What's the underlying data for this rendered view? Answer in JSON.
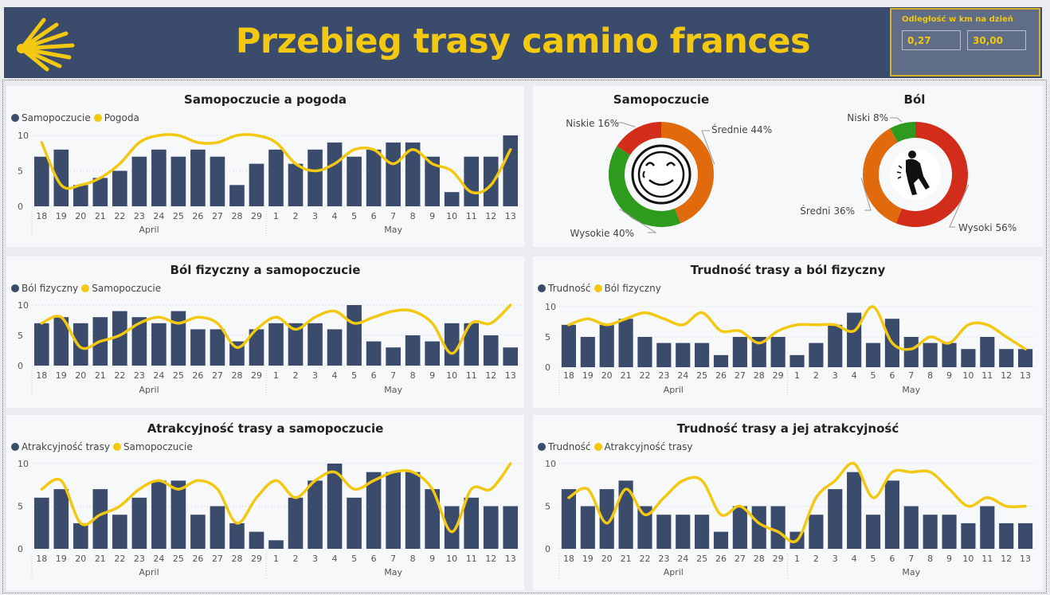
{
  "header": {
    "title": "Przebieg trasy camino frances",
    "logo": "scallop-shell-icon",
    "brand_color": "#3b4b6c",
    "accent_color": "#f2c811"
  },
  "slicer": {
    "title": "Odległość w km na dzień",
    "min_value": "0,27",
    "max_value": "30,00"
  },
  "colors": {
    "bar": "#3b4b6c",
    "line": "#f2c811",
    "orange": "#e06a0c",
    "green": "#2e9a1e",
    "red": "#d22c1a"
  },
  "chart_data": [
    {
      "type": "bar",
      "title": "Samopoczucie a pogoda",
      "categories": [
        "18",
        "19",
        "20",
        "21",
        "22",
        "23",
        "24",
        "25",
        "26",
        "27",
        "28",
        "29",
        "1",
        "2",
        "3",
        "4",
        "5",
        "6",
        "7",
        "8",
        "9",
        "10",
        "11",
        "12",
        "13"
      ],
      "months": [
        "April",
        "May"
      ],
      "ylim": [
        0,
        10
      ],
      "yticks": [
        "0",
        "5",
        "10"
      ],
      "series": [
        {
          "name": "Samopoczucie",
          "kind": "bar",
          "values": [
            7,
            8,
            3,
            4,
            5,
            7,
            8,
            7,
            8,
            7,
            3,
            6,
            8,
            6,
            8,
            9,
            7,
            8,
            9,
            9,
            7,
            2,
            7,
            7,
            10
          ]
        },
        {
          "name": "Pogoda",
          "kind": "line",
          "values": [
            9,
            3,
            3,
            4,
            6,
            9,
            10,
            10,
            9,
            9,
            10,
            10,
            9,
            6,
            5,
            6,
            8,
            8,
            6,
            8,
            6,
            5,
            2,
            3,
            8
          ]
        }
      ]
    },
    {
      "type": "pie",
      "title": "Samopoczucie",
      "slices": [
        {
          "label": "Średnie 44%",
          "value": 44,
          "color": "orange"
        },
        {
          "label": "Wysokie 40%",
          "value": 40,
          "color": "green"
        },
        {
          "label": "Niskie 16%",
          "value": 16,
          "color": "red"
        }
      ]
    },
    {
      "type": "pie",
      "title": "Ból",
      "slices": [
        {
          "label": "Wysoki 56%",
          "value": 56,
          "color": "red"
        },
        {
          "label": "Średni 36%",
          "value": 36,
          "color": "orange"
        },
        {
          "label": "Niski 8%",
          "value": 8,
          "color": "green"
        }
      ]
    },
    {
      "type": "bar",
      "title": "Ból fizyczny a samopoczucie",
      "categories": [
        "18",
        "19",
        "20",
        "21",
        "22",
        "23",
        "24",
        "25",
        "26",
        "27",
        "28",
        "29",
        "1",
        "2",
        "3",
        "4",
        "5",
        "6",
        "7",
        "8",
        "9",
        "10",
        "11",
        "12",
        "13"
      ],
      "months": [
        "April",
        "May"
      ],
      "ylim": [
        0,
        10
      ],
      "yticks": [
        "0",
        "5",
        "10"
      ],
      "series": [
        {
          "name": "Ból fizyczny",
          "kind": "bar",
          "values": [
            7,
            8,
            7,
            8,
            9,
            8,
            7,
            9,
            6,
            6,
            4,
            6,
            7,
            7,
            7,
            6,
            10,
            4,
            3,
            5,
            4,
            7,
            7,
            5,
            3
          ]
        },
        {
          "name": "Samopoczucie",
          "kind": "line",
          "values": [
            7,
            8,
            3,
            4,
            5,
            7,
            8,
            7,
            8,
            7,
            3,
            6,
            8,
            6,
            8,
            9,
            7,
            8,
            9,
            9,
            7,
            2,
            7,
            7,
            10
          ]
        }
      ]
    },
    {
      "type": "bar",
      "title": "Trudność trasy a ból fizyczny",
      "categories": [
        "18",
        "19",
        "20",
        "21",
        "22",
        "23",
        "24",
        "25",
        "26",
        "27",
        "28",
        "29",
        "1",
        "2",
        "3",
        "4",
        "5",
        "6",
        "7",
        "8",
        "9",
        "10",
        "11",
        "12",
        "13"
      ],
      "months": [
        "April",
        "May"
      ],
      "ylim": [
        0,
        10
      ],
      "yticks": [
        "0",
        "5",
        "10"
      ],
      "series": [
        {
          "name": "Trudność",
          "kind": "bar",
          "values": [
            7,
            5,
            7,
            8,
            5,
            4,
            4,
            4,
            2,
            5,
            5,
            5,
            2,
            4,
            7,
            9,
            4,
            8,
            5,
            4,
            4,
            3,
            5,
            3,
            3
          ]
        },
        {
          "name": "Ból fizyczny",
          "kind": "line",
          "values": [
            7,
            8,
            7,
            8,
            9,
            8,
            7,
            9,
            6,
            6,
            4,
            6,
            7,
            7,
            7,
            6,
            10,
            4,
            3,
            5,
            4,
            7,
            7,
            5,
            3
          ]
        }
      ]
    },
    {
      "type": "bar",
      "title": "Atrakcyjność trasy a samopoczucie",
      "categories": [
        "18",
        "19",
        "20",
        "21",
        "22",
        "23",
        "24",
        "25",
        "26",
        "27",
        "28",
        "29",
        "1",
        "2",
        "3",
        "4",
        "5",
        "6",
        "7",
        "8",
        "9",
        "10",
        "11",
        "12",
        "13"
      ],
      "months": [
        "April",
        "May"
      ],
      "ylim": [
        0,
        10
      ],
      "yticks": [
        "0",
        "5",
        "10"
      ],
      "series": [
        {
          "name": "Atrakcyjność trasy",
          "kind": "bar",
          "values": [
            6,
            7,
            3,
            7,
            4,
            6,
            8,
            8,
            4,
            5,
            3,
            2,
            1,
            6,
            8,
            10,
            6,
            9,
            9,
            9,
            7,
            5,
            6,
            5,
            5
          ]
        },
        {
          "name": "Samopoczucie",
          "kind": "line",
          "values": [
            7,
            8,
            3,
            4,
            5,
            7,
            8,
            7,
            8,
            7,
            3,
            6,
            8,
            6,
            8,
            9,
            7,
            8,
            9,
            9,
            7,
            2,
            7,
            7,
            10
          ]
        }
      ]
    },
    {
      "type": "bar",
      "title": "Trudność trasy a jej atrakcyjność",
      "categories": [
        "18",
        "19",
        "20",
        "21",
        "22",
        "23",
        "24",
        "25",
        "26",
        "27",
        "28",
        "29",
        "1",
        "2",
        "3",
        "4",
        "5",
        "6",
        "7",
        "8",
        "9",
        "10",
        "11",
        "12",
        "13"
      ],
      "months": [
        "April",
        "May"
      ],
      "ylim": [
        0,
        10
      ],
      "yticks": [
        "0",
        "5",
        "10"
      ],
      "series": [
        {
          "name": "Trudność",
          "kind": "bar",
          "values": [
            7,
            5,
            7,
            8,
            5,
            4,
            4,
            4,
            2,
            5,
            5,
            5,
            2,
            4,
            7,
            9,
            4,
            8,
            5,
            4,
            4,
            3,
            5,
            3,
            3
          ]
        },
        {
          "name": "Atrakcyjność trasy",
          "kind": "line",
          "values": [
            6,
            7,
            3,
            7,
            4,
            6,
            8,
            8,
            4,
            5,
            3,
            2,
            1,
            6,
            8,
            10,
            6,
            9,
            9,
            9,
            7,
            5,
            6,
            5,
            5
          ]
        }
      ]
    }
  ]
}
